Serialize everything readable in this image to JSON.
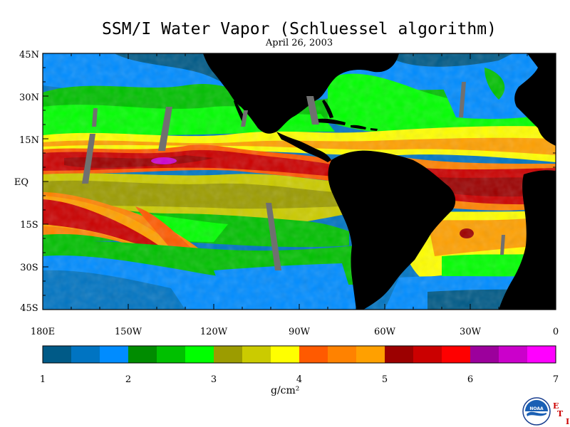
{
  "title": "SSM/I Water Vapor (Schluessel algorithm)",
  "date": "April 26, 2003",
  "map": {
    "lat_labels": [
      "45N",
      "30N",
      "15N",
      "EQ",
      "15S",
      "30S",
      "45S"
    ],
    "lon_labels": [
      "180E",
      "150W",
      "120W",
      "90W",
      "60W",
      "30W",
      "0"
    ],
    "land_color": "#000000",
    "no_data_color": "#707070"
  },
  "colorbar": {
    "unit": "g/cm²",
    "tick_labels": [
      "1",
      "2",
      "3",
      "4",
      "5",
      "6",
      "7"
    ],
    "colors": [
      "#005a87",
      "#0074c2",
      "#008cff",
      "#008c00",
      "#00c000",
      "#00ff00",
      "#9c9c00",
      "#cbcb00",
      "#ffff00",
      "#ff5a00",
      "#ff8200",
      "#ffa000",
      "#9c0000",
      "#cb0000",
      "#ff0000",
      "#9c009c",
      "#cb00cb",
      "#ff00ff"
    ]
  },
  "logo": {
    "text": "NOAA",
    "corner_letters": [
      "E",
      "T",
      "I"
    ]
  }
}
